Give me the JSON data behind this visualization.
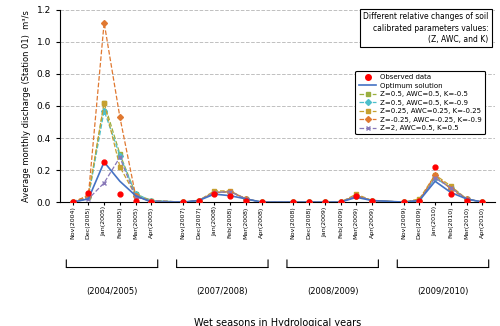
{
  "xlabel": "Wet seasons in Hydrological years",
  "ylabel": "Average monthly discharge (Station 01)  m³/s",
  "ylim": [
    0,
    1.2
  ],
  "yticks": [
    0,
    0.2,
    0.4,
    0.6,
    0.8,
    1.0,
    1.2
  ],
  "seasons": [
    "(2004/2005)",
    "(2007/2008)",
    "(2008/2009)",
    "(2009/2010)"
  ],
  "tick_labels": [
    "Nov(2004)",
    "Dec(2005)",
    "Jan(2005)",
    "Feb(2005)",
    "Mar(2005)",
    "Apr(2005)",
    "Nov(2007)",
    "Dec(2007)",
    "Jan(2008)",
    "Feb(2008)",
    "Mar(2008)",
    "Apr(2008)",
    "Nov(2008)",
    "Dec(2008)",
    "Jan(2009)",
    "Feb(2009)",
    "Mar(2009)",
    "Apr(2009)",
    "Nov(2009)",
    "Dec(2009)",
    "Jan(2010)",
    "Feb(2010)",
    "Mar(2010)",
    "Apr(2010)"
  ],
  "season_groups": [
    [
      0,
      1,
      2,
      3,
      4,
      5
    ],
    [
      6,
      7,
      8,
      9,
      10,
      11
    ],
    [
      12,
      13,
      14,
      15,
      16,
      17
    ],
    [
      18,
      19,
      20,
      21,
      22,
      23
    ]
  ],
  "observed": [
    0.0,
    0.06,
    0.25,
    0.05,
    0.01,
    0.0,
    0.0,
    0.01,
    0.05,
    0.04,
    0.01,
    0.0,
    0.0,
    0.0,
    0.0,
    0.0,
    0.04,
    0.01,
    0.0,
    0.01,
    0.22,
    0.05,
    0.01,
    0.0
  ],
  "optimum": [
    0.0,
    0.02,
    0.25,
    0.13,
    0.04,
    0.0,
    0.0,
    0.01,
    0.05,
    0.04,
    0.02,
    0.0,
    0.0,
    0.0,
    0.0,
    0.0,
    0.03,
    0.01,
    0.0,
    0.01,
    0.13,
    0.06,
    0.02,
    0.0
  ],
  "series": [
    {
      "label": "Z=0.5, AWC=0.5, K=-0.5",
      "color": "#9aaf40",
      "data": [
        0.0,
        0.03,
        0.62,
        0.3,
        0.05,
        0.01,
        0.0,
        0.01,
        0.06,
        0.065,
        0.02,
        0.0,
        0.0,
        0.0,
        0.0,
        0.0,
        0.04,
        0.01,
        0.0,
        0.01,
        0.16,
        0.09,
        0.02,
        0.0
      ]
    },
    {
      "label": "Z=0.5, AWC=0.5, K=-0.9",
      "color": "#4cbfcb",
      "data": [
        0.0,
        0.03,
        0.57,
        0.29,
        0.05,
        0.01,
        0.0,
        0.01,
        0.06,
        0.065,
        0.02,
        0.0,
        0.0,
        0.0,
        0.0,
        0.0,
        0.04,
        0.01,
        0.0,
        0.01,
        0.15,
        0.09,
        0.02,
        0.0
      ]
    },
    {
      "label": "Z=0.25, AWC=0.25, K=-0.25",
      "color": "#c6a030",
      "data": [
        0.0,
        0.04,
        0.62,
        0.22,
        0.04,
        0.01,
        0.0,
        0.01,
        0.07,
        0.07,
        0.02,
        0.0,
        0.0,
        0.0,
        0.0,
        0.0,
        0.05,
        0.01,
        0.0,
        0.02,
        0.17,
        0.1,
        0.02,
        0.0
      ]
    },
    {
      "label": "Z=-0.25, AWC=-0.25, K=-0.9",
      "color": "#e07830",
      "data": [
        0.0,
        0.04,
        1.12,
        0.53,
        0.04,
        0.0,
        0.0,
        0.01,
        0.06,
        0.065,
        0.02,
        0.0,
        0.0,
        0.0,
        0.0,
        0.0,
        0.04,
        0.01,
        0.0,
        0.01,
        0.17,
        0.08,
        0.02,
        0.0
      ]
    },
    {
      "label": "Z=2, AWC=0.5, K=0.5",
      "color": "#8878b8",
      "data": [
        0.0,
        0.02,
        0.12,
        0.28,
        0.03,
        0.01,
        0.0,
        0.01,
        0.06,
        0.065,
        0.02,
        0.0,
        0.0,
        0.0,
        0.0,
        0.0,
        0.04,
        0.01,
        0.0,
        0.01,
        0.15,
        0.09,
        0.02,
        0.0
      ]
    }
  ],
  "legend_text_box": "Different relative changes of soil\ncalibrated parameters values:\n(Z, AWC, and K)",
  "marker_styles": [
    "s",
    "D",
    "s",
    "D",
    "x"
  ]
}
